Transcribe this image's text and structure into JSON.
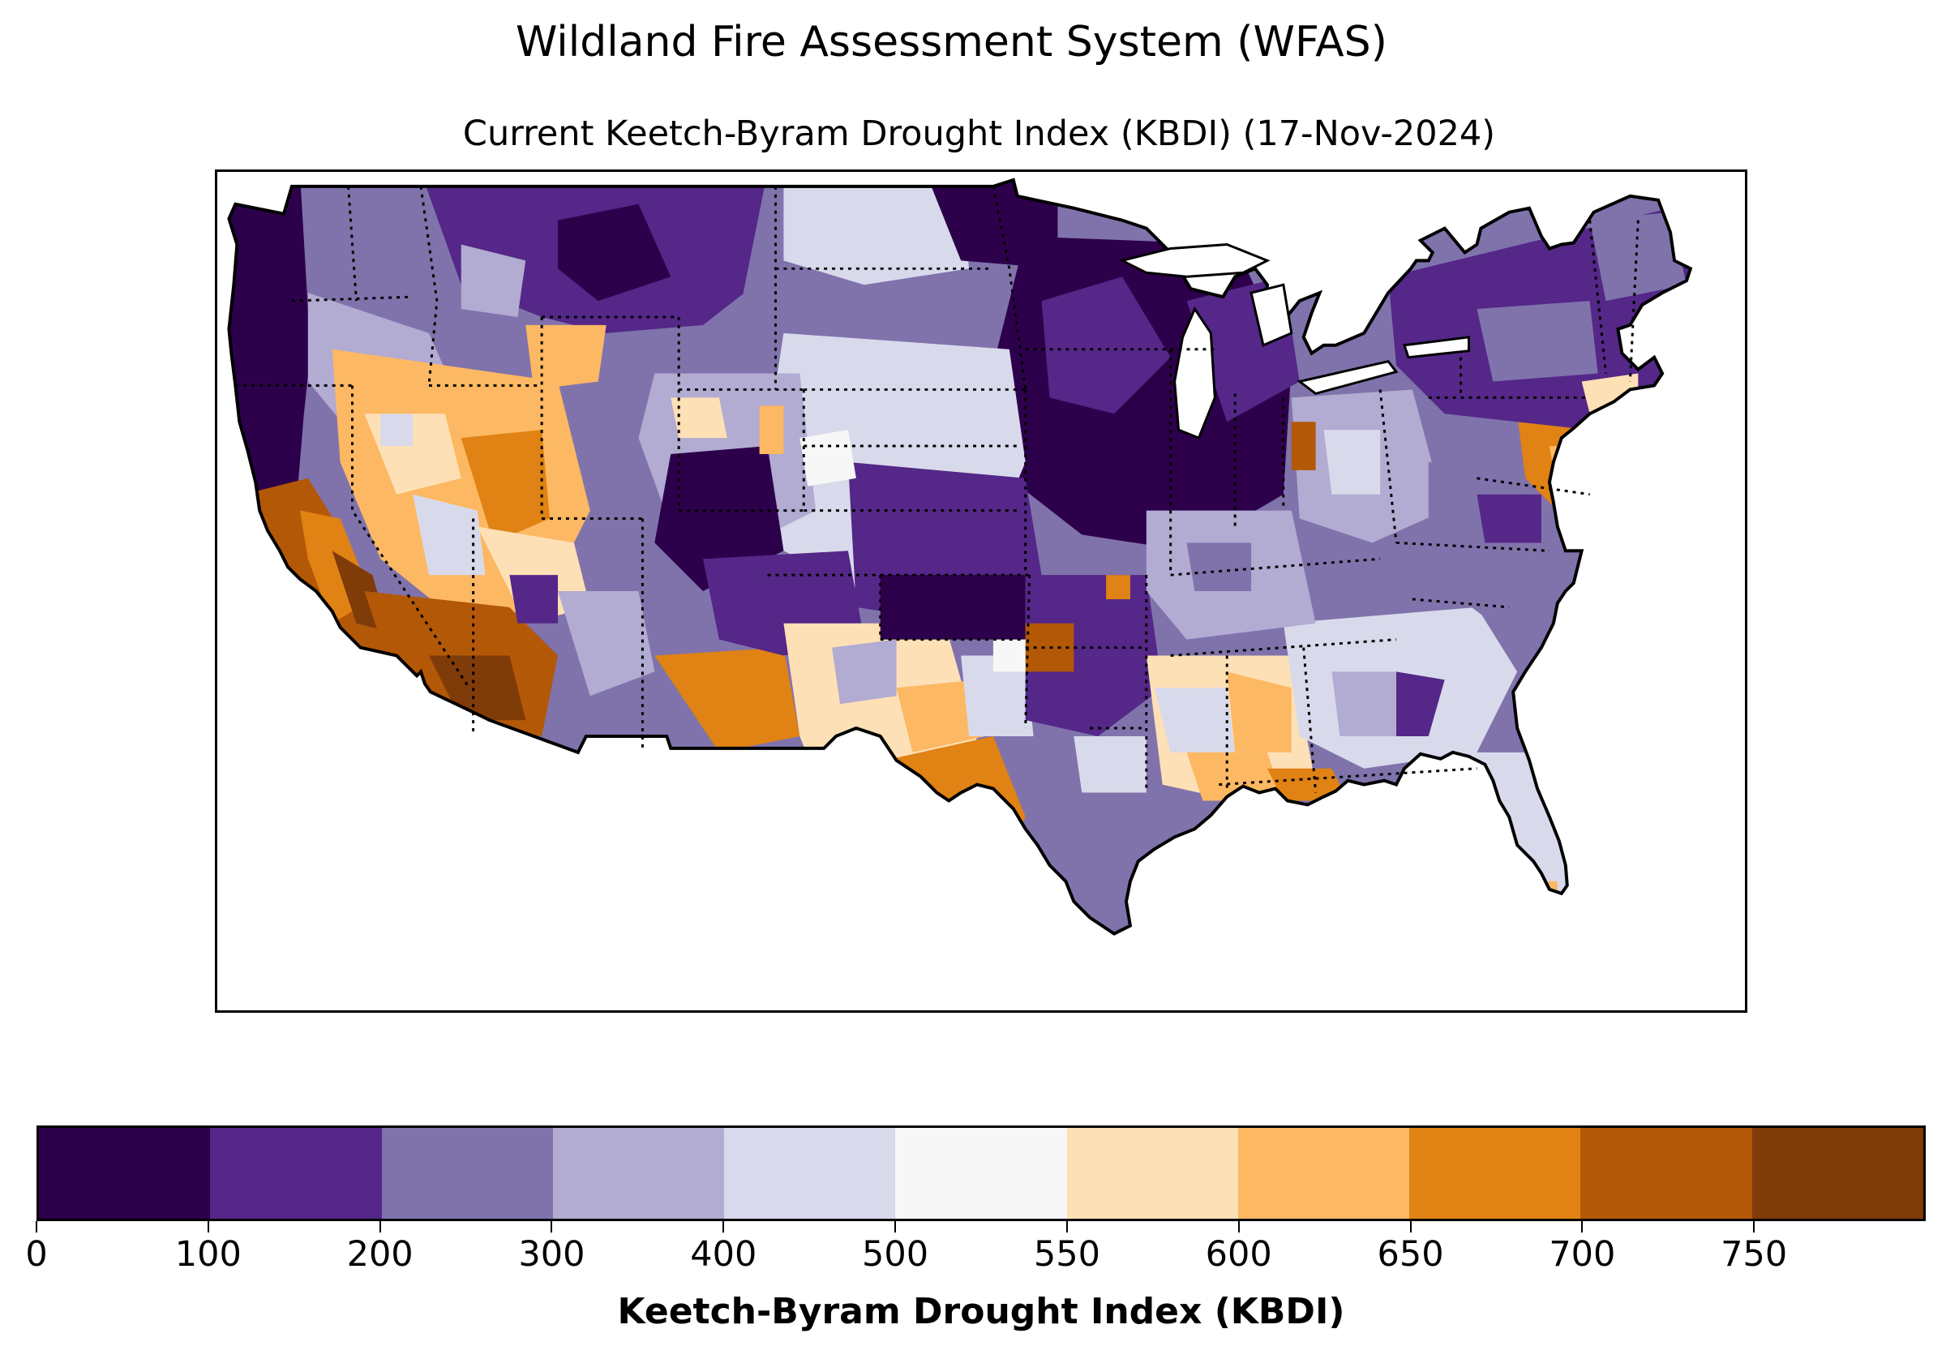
{
  "suptitle": "Wildland Fire Assessment System (WFAS)",
  "subtitle": "Current Keetch-Byram Drought Index (KBDI) (17-Nov-2024)",
  "colorbar": {
    "label": "Keetch-Byram Drought Index (KBDI)",
    "ticks": [
      "0",
      "100",
      "200",
      "300",
      "400",
      "500",
      "550",
      "600",
      "650",
      "700",
      "750"
    ],
    "bins": [
      {
        "from": 0,
        "to": 100,
        "color": "#2d004b"
      },
      {
        "from": 100,
        "to": 200,
        "color": "#542788"
      },
      {
        "from": 200,
        "to": 300,
        "color": "#8073ac"
      },
      {
        "from": 300,
        "to": 400,
        "color": "#b2abd2"
      },
      {
        "from": 400,
        "to": 500,
        "color": "#d8daeb"
      },
      {
        "from": 500,
        "to": 550,
        "color": "#f7f7f7"
      },
      {
        "from": 550,
        "to": 600,
        "color": "#fee0b6"
      },
      {
        "from": 600,
        "to": 650,
        "color": "#fdb863"
      },
      {
        "from": 650,
        "to": 700,
        "color": "#e08214"
      },
      {
        "from": 700,
        "to": 750,
        "color": "#b35806"
      },
      {
        "from": 750,
        "to": 800,
        "color": "#7f3b08"
      }
    ]
  },
  "map": {
    "extent": "Contiguous United States",
    "color_regions": [
      {
        "region": "Pacific Northwest coast",
        "color": "#2d004b"
      },
      {
        "region": "Northern Rockies",
        "color": "#542788"
      },
      {
        "region": "Northern Plains",
        "color": "#8073ac"
      },
      {
        "region": "Upper Midwest",
        "color": "#2d004b"
      },
      {
        "region": "Central Plains",
        "color": "#542788"
      },
      {
        "region": "Great Basin",
        "color": "#fdb863"
      },
      {
        "region": "Southern California",
        "color": "#b35806"
      },
      {
        "region": "Southern Arizona",
        "color": "#7f3b08"
      },
      {
        "region": "Southwest",
        "color": "#e08214"
      },
      {
        "region": "South Texas",
        "color": "#e08214"
      },
      {
        "region": "Gulf Coast",
        "color": "#fee0b6"
      },
      {
        "region": "Southeast",
        "color": "#d8daeb"
      },
      {
        "region": "Ohio Valley",
        "color": "#b2abd2"
      },
      {
        "region": "Northeast",
        "color": "#542788"
      },
      {
        "region": "Mid-Atlantic coast",
        "color": "#e08214"
      },
      {
        "region": "Florida",
        "color": "#d8daeb"
      }
    ]
  }
}
